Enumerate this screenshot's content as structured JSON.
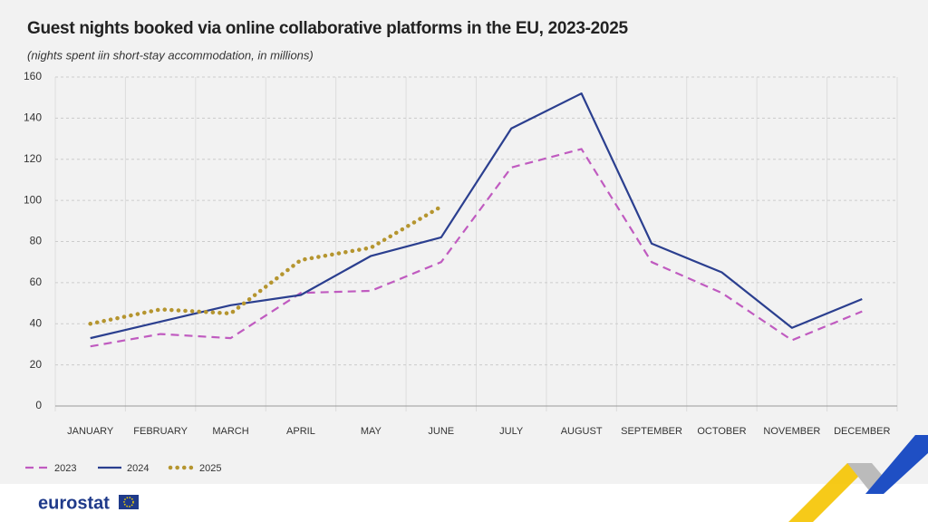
{
  "chart_data": {
    "type": "line",
    "title": "Guest nights booked via online collaborative platforms in the EU, 2023-2025",
    "subtitle": "(nights spent iin short-stay accommodation, in millions)",
    "categories": [
      "JANUARY",
      "FEBRUARY",
      "MARCH",
      "APRIL",
      "MAY",
      "JUNE",
      "JULY",
      "AUGUST",
      "SEPTEMBER",
      "OCTOBER",
      "NOVEMBER",
      "DECEMBER"
    ],
    "series": [
      {
        "name": "2023",
        "color": "#c05bc0",
        "dash": "dashed",
        "values": [
          29,
          35,
          33,
          55,
          56,
          70,
          116,
          125,
          70,
          55,
          32,
          46
        ]
      },
      {
        "name": "2024",
        "color": "#2b3f8f",
        "dash": "solid",
        "values": [
          33,
          41,
          49,
          54,
          73,
          82,
          135,
          152,
          79,
          65,
          38,
          52
        ]
      },
      {
        "name": "2025",
        "color": "#b5952f",
        "dash": "dotted",
        "values": [
          40,
          47,
          45,
          71,
          77,
          97,
          null,
          null,
          null,
          null,
          null,
          null
        ]
      }
    ],
    "ylim": [
      0,
      160
    ],
    "yticks": [
      0,
      20,
      40,
      60,
      80,
      100,
      120,
      140,
      160
    ],
    "grid": true,
    "legend": "bottom-left",
    "logo": "eurostat"
  }
}
